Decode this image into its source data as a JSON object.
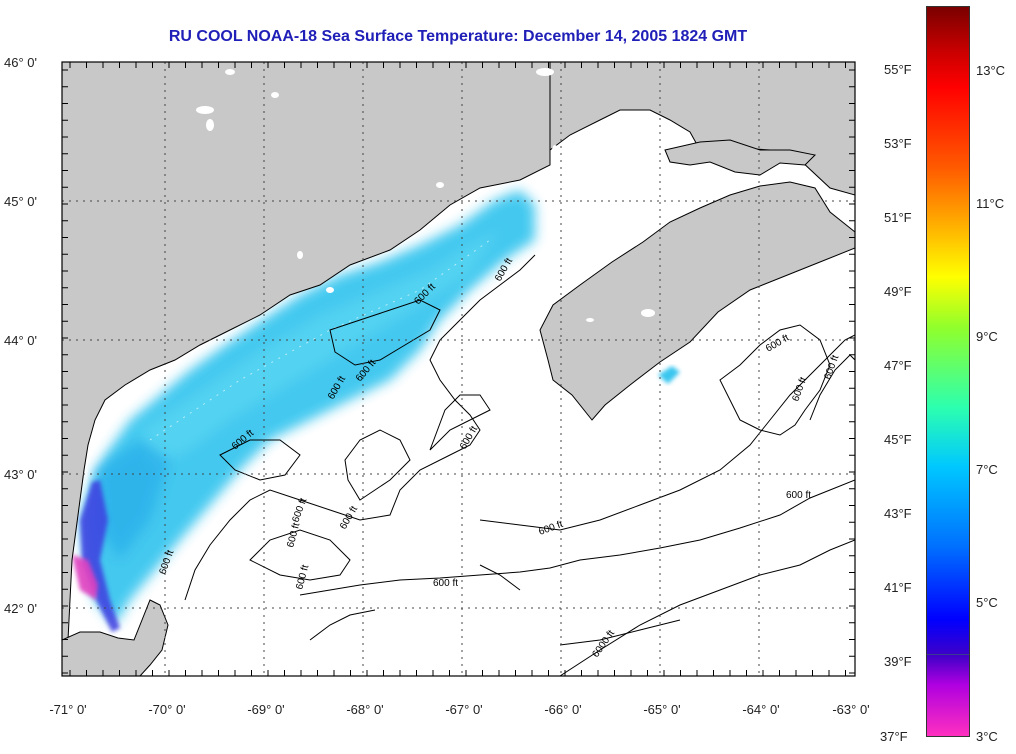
{
  "title": "RU COOL  NOAA-18  Sea Surface Temperature:  December 14, 2005 1824 GMT",
  "latitude_labels": [
    "46° 0'",
    "45° 0'",
    "44° 0'",
    "43° 0'",
    "42° 0'"
  ],
  "longitude_labels": [
    "-71° 0'",
    "-70° 0'",
    "-69° 0'",
    "-68° 0'",
    "-67° 0'",
    "-66° 0'",
    "-65° 0'",
    "-64° 0'",
    "-63° 0'"
  ],
  "contour_labels": [
    "600 ft",
    "600 ft",
    "600 ft",
    "600 ft",
    "600 ft",
    "600 ft",
    "600 ft",
    "600 ft",
    "600 ft",
    "600 ft",
    "600 ft",
    "600 ft",
    "600 ft",
    "600 ft",
    "6000 ft"
  ],
  "colorbar": {
    "fahrenheit": [
      "55°F",
      "53°F",
      "51°F",
      "49°F",
      "47°F",
      "45°F",
      "43°F",
      "41°F",
      "39°F",
      "37°F"
    ],
    "celsius": [
      "13°C",
      "11°C",
      "9°C",
      "7°C",
      "5°C",
      "3°C"
    ]
  },
  "colors": {
    "land": "#c8c8c8",
    "ocean": "#ffffff",
    "title": "#2020b8",
    "coast": "#000000"
  }
}
